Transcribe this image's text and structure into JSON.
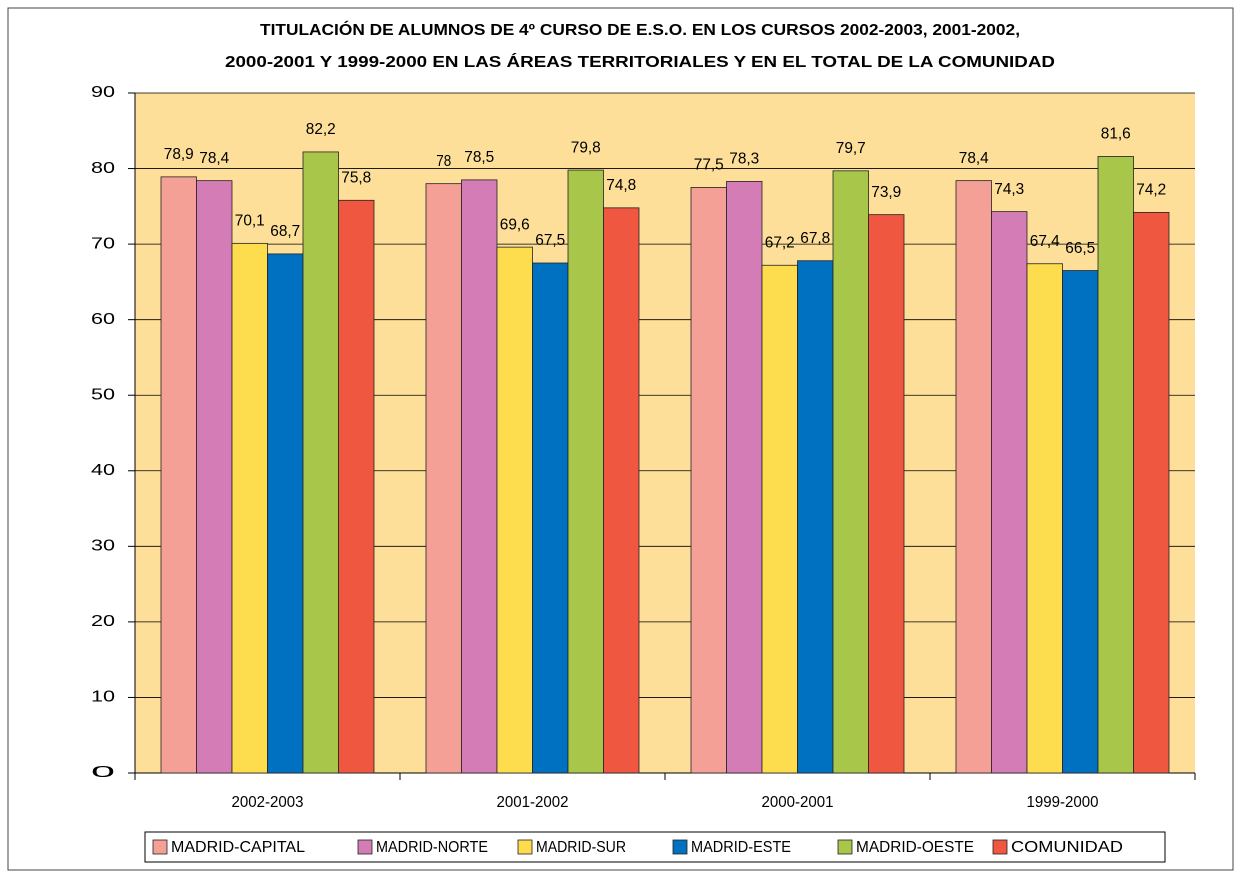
{
  "chart_data": {
    "type": "bar",
    "title": [
      "TITULACIÓN DE ALUMNOS DE 4º CURSO DE E.S.O. EN LOS CURSOS  2002-2003, 2001-2002,",
      "2000-2001 Y 1999-2000 EN LAS ÁREAS TERRITORIALES  Y EN EL TOTAL DE LA COMUNIDAD"
    ],
    "categories": [
      "2002-2003",
      "2001-2002",
      "2000-2001",
      "1999-2000"
    ],
    "series": [
      {
        "name": "MADRID-CAPITAL",
        "color": "#f4a097",
        "values": [
          78.9,
          78,
          77.5,
          78.4
        ],
        "value_labels": [
          "78,9",
          "78",
          "77,5",
          "78,4"
        ]
      },
      {
        "name": "MADRID-NORTE",
        "color": "#d47cb6",
        "values": [
          78.4,
          78.5,
          78.3,
          74.3
        ],
        "value_labels": [
          "78,4",
          "78,5",
          "78,3",
          "74,3"
        ]
      },
      {
        "name": "MADRID-SUR",
        "color": "#fddd4e",
        "values": [
          70.1,
          69.6,
          67.2,
          67.4
        ],
        "value_labels": [
          "70,1",
          "69,6",
          "67,2",
          "67,4"
        ]
      },
      {
        "name": "MADRID-ESTE",
        "color": "#0070c0",
        "values": [
          68.7,
          67.5,
          67.8,
          66.5
        ],
        "value_labels": [
          "68,7",
          "67,5",
          "67,8",
          "66,5"
        ]
      },
      {
        "name": "MADRID-OESTE",
        "color": "#a8c64a",
        "values": [
          82.2,
          79.8,
          79.7,
          81.6
        ],
        "value_labels": [
          "82,2",
          "79,8",
          "79,7",
          "81,6"
        ]
      },
      {
        "name": "COMUNIDAD",
        "color": "#ef5741",
        "values": [
          75.8,
          74.8,
          73.9,
          74.2
        ],
        "value_labels": [
          "75,8",
          "74,8",
          "73,9",
          "74,2"
        ]
      }
    ],
    "ylim": [
      0,
      90
    ],
    "yticks": [
      0,
      10,
      20,
      30,
      40,
      50,
      60,
      70,
      80,
      90
    ],
    "grid": true,
    "legend": "bottom"
  }
}
